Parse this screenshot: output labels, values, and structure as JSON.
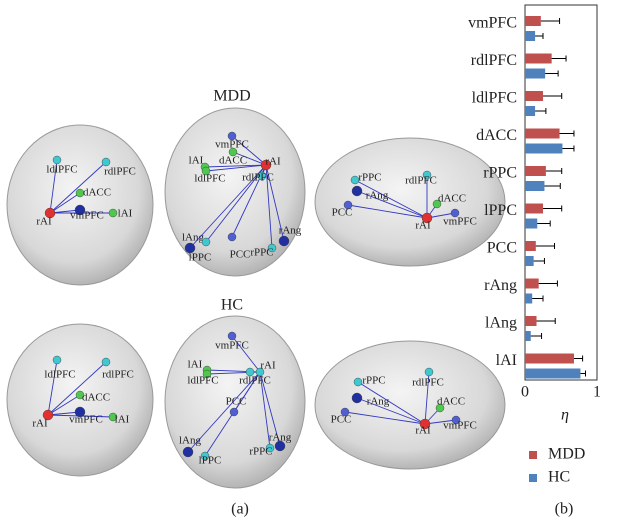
{
  "chart_data": {
    "type": "bar",
    "orientation": "horizontal",
    "categories": [
      "vmPFC",
      "rdlPFC",
      "ldlPFC",
      "dACC",
      "rPPC",
      "lPPC",
      "PCC",
      "rAng",
      "lAng",
      "lAI"
    ],
    "series": [
      {
        "name": "MDD",
        "color": "#c0504d",
        "values": [
          0.22,
          0.37,
          0.25,
          0.48,
          0.29,
          0.25,
          0.15,
          0.19,
          0.16,
          0.68
        ],
        "errors": [
          0.26,
          0.2,
          0.26,
          0.2,
          0.22,
          0.26,
          0.26,
          0.26,
          0.26,
          0.12
        ]
      },
      {
        "name": "HC",
        "color": "#4f81bd",
        "values": [
          0.14,
          0.28,
          0.14,
          0.52,
          0.27,
          0.17,
          0.12,
          0.1,
          0.08,
          0.77
        ],
        "errors": [
          0.11,
          0.18,
          0.15,
          0.16,
          0.22,
          0.18,
          0.15,
          0.15,
          0.15,
          0.07
        ]
      }
    ],
    "xlim": [
      0,
      1
    ],
    "xticks": [
      0,
      1
    ],
    "xlabel": "η",
    "legend": "bottom"
  },
  "figure": {
    "panel_a_label": "(a)",
    "panel_b_label": "(b)",
    "brains": [
      {
        "title": "MDD",
        "views": [
          {
            "nodes": [
              "ldlPFC",
              "rdlPFC",
              "dACC",
              "rAI",
              "vmPFC",
              "lAI"
            ]
          },
          {
            "nodes": [
              "vmPFC",
              "dACC",
              "lAI",
              "rAI",
              "ldlPFC",
              "rdlPFC",
              "PCC",
              "lAng",
              "lPPC",
              "rAng",
              "rPPC"
            ]
          },
          {
            "nodes": [
              "rPPC",
              "rdlPFC",
              "rAng",
              "dACC",
              "PCC",
              "rAI",
              "vmPFC"
            ]
          }
        ]
      },
      {
        "title": "HC",
        "views": [
          {
            "nodes": [
              "ldlPFC",
              "rdlPFC",
              "dACC",
              "rAI",
              "vmPFC",
              "lAI"
            ]
          },
          {
            "nodes": [
              "vmPFC",
              "lAI",
              "rAI",
              "ldlPFC",
              "rdlPFC",
              "PCC",
              "lAng",
              "lPPC",
              "rAng",
              "rPPC"
            ]
          },
          {
            "nodes": [
              "rPPC",
              "rdlPFC",
              "rAng",
              "dACC",
              "PCC",
              "rAI",
              "vmPFC"
            ]
          }
        ]
      }
    ]
  }
}
